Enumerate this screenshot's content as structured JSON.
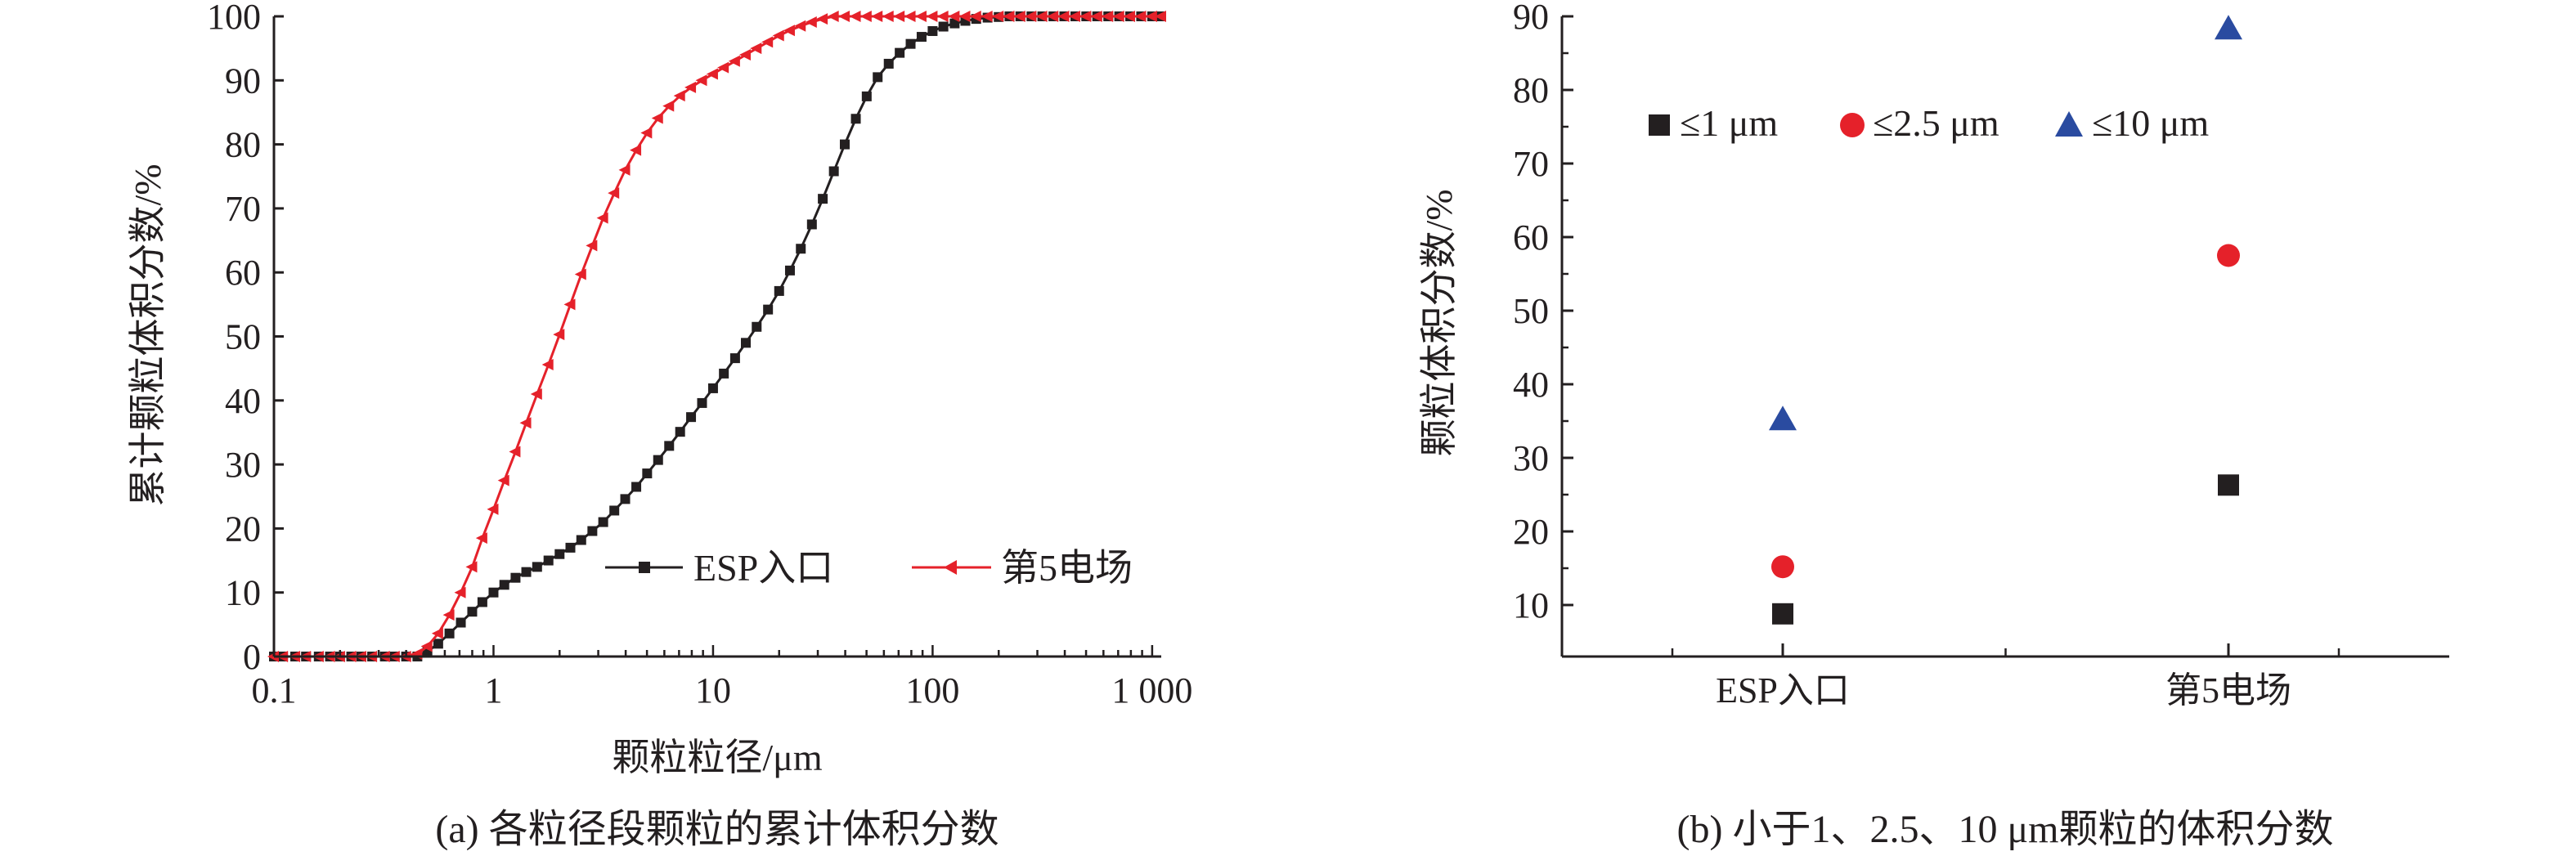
{
  "chart_data": [
    {
      "type": "line",
      "caption": "(a) 各粒径段颗粒的累计体积分数",
      "xlabel": "颗粒粒径/μm",
      "ylabel": "累计颗粒体积分数/%",
      "xscale": "log",
      "xlim": [
        0.1,
        1100
      ],
      "ylim": [
        0,
        100
      ],
      "xticks": [
        0.1,
        1,
        10,
        100,
        1000
      ],
      "xtick_labels": [
        "0.1",
        "1",
        "10",
        "100",
        "1 000"
      ],
      "yticks": [
        0,
        10,
        20,
        30,
        40,
        50,
        60,
        70,
        80,
        90,
        100
      ],
      "legend_position": "lower-right",
      "series": [
        {
          "name": "ESP入口",
          "color": "#231f20",
          "marker": "square",
          "points": [
            [
              0.1,
              0
            ],
            [
              0.11,
              0
            ],
            [
              0.125,
              0
            ],
            [
              0.14,
              0
            ],
            [
              0.16,
              0
            ],
            [
              0.18,
              0
            ],
            [
              0.2,
              0
            ],
            [
              0.225,
              0
            ],
            [
              0.25,
              0
            ],
            [
              0.28,
              0
            ],
            [
              0.32,
              0
            ],
            [
              0.355,
              0
            ],
            [
              0.4,
              0
            ],
            [
              0.45,
              0
            ],
            [
              0.5,
              0.8
            ],
            [
              0.56,
              2
            ],
            [
              0.63,
              3.6
            ],
            [
              0.71,
              5.3
            ],
            [
              0.8,
              7
            ],
            [
              0.89,
              8.5
            ],
            [
              1.0,
              10
            ],
            [
              1.12,
              11.2
            ],
            [
              1.26,
              12.3
            ],
            [
              1.41,
              13.2
            ],
            [
              1.58,
              14
            ],
            [
              1.78,
              15
            ],
            [
              2.0,
              16
            ],
            [
              2.24,
              17
            ],
            [
              2.51,
              18.2
            ],
            [
              2.82,
              19.6
            ],
            [
              3.16,
              21
            ],
            [
              3.55,
              22.8
            ],
            [
              3.98,
              24.6
            ],
            [
              4.47,
              26.5
            ],
            [
              5.01,
              28.6
            ],
            [
              5.62,
              30.7
            ],
            [
              6.31,
              32.9
            ],
            [
              7.08,
              35.1
            ],
            [
              7.94,
              37.4
            ],
            [
              8.91,
              39.6
            ],
            [
              10.0,
              41.9
            ],
            [
              11.2,
              44.2
            ],
            [
              12.6,
              46.6
            ],
            [
              14.1,
              49
            ],
            [
              15.8,
              51.5
            ],
            [
              17.8,
              54.2
            ],
            [
              20.0,
              57.1
            ],
            [
              22.4,
              60.3
            ],
            [
              25.1,
              63.7
            ],
            [
              28.2,
              67.5
            ],
            [
              31.6,
              71.5
            ],
            [
              35.5,
              75.8
            ],
            [
              39.8,
              80
            ],
            [
              44.7,
              84
            ],
            [
              50.1,
              87.5
            ],
            [
              56.2,
              90.5
            ],
            [
              63.1,
              92.6
            ],
            [
              70.8,
              94.3
            ],
            [
              79.4,
              95.7
            ],
            [
              89.1,
              96.8
            ],
            [
              100,
              97.7
            ],
            [
              112,
              98.4
            ],
            [
              126,
              98.9
            ],
            [
              141,
              99.3
            ],
            [
              158,
              99.6
            ],
            [
              178,
              99.8
            ],
            [
              200,
              99.9
            ],
            [
              224,
              100
            ],
            [
              251,
              100
            ],
            [
              282,
              100
            ],
            [
              316,
              100
            ],
            [
              355,
              100
            ],
            [
              398,
              100
            ],
            [
              447,
              100
            ],
            [
              501,
              100
            ],
            [
              562,
              100
            ],
            [
              631,
              100
            ],
            [
              708,
              100
            ],
            [
              794,
              100
            ],
            [
              891,
              100
            ],
            [
              1000,
              100
            ],
            [
              1100,
              100
            ]
          ]
        },
        {
          "name": "第5电场",
          "color": "#e5212a",
          "marker": "triangle-left",
          "points": [
            [
              0.1,
              0
            ],
            [
              0.11,
              0
            ],
            [
              0.125,
              0
            ],
            [
              0.14,
              0
            ],
            [
              0.16,
              0
            ],
            [
              0.18,
              0
            ],
            [
              0.2,
              0
            ],
            [
              0.225,
              0
            ],
            [
              0.25,
              0
            ],
            [
              0.28,
              0
            ],
            [
              0.32,
              0
            ],
            [
              0.355,
              0
            ],
            [
              0.4,
              0
            ],
            [
              0.45,
              0.4
            ],
            [
              0.5,
              1.6
            ],
            [
              0.56,
              3.6
            ],
            [
              0.63,
              6.5
            ],
            [
              0.71,
              10
            ],
            [
              0.8,
              14
            ],
            [
              0.89,
              18.5
            ],
            [
              1.0,
              23
            ],
            [
              1.12,
              27.5
            ],
            [
              1.26,
              32
            ],
            [
              1.41,
              36.5
            ],
            [
              1.58,
              41
            ],
            [
              1.78,
              45.6
            ],
            [
              2.0,
              50.3
            ],
            [
              2.24,
              55
            ],
            [
              2.51,
              59.7
            ],
            [
              2.82,
              64.2
            ],
            [
              3.16,
              68.5
            ],
            [
              3.55,
              72.4
            ],
            [
              3.98,
              76
            ],
            [
              4.47,
              79.1
            ],
            [
              5.01,
              81.8
            ],
            [
              5.62,
              84.1
            ],
            [
              6.31,
              86
            ],
            [
              7.08,
              87.6
            ],
            [
              7.94,
              88.9
            ],
            [
              8.91,
              90
            ],
            [
              10.0,
              91
            ],
            [
              11.2,
              92
            ],
            [
              12.6,
              93
            ],
            [
              14.1,
              94
            ],
            [
              15.8,
              95
            ],
            [
              17.8,
              96
            ],
            [
              20.0,
              97
            ],
            [
              22.4,
              97.8
            ],
            [
              25.1,
              98.5
            ],
            [
              28.2,
              99.1
            ],
            [
              31.6,
              99.6
            ],
            [
              35.5,
              100
            ],
            [
              39.8,
              100
            ],
            [
              44.7,
              100
            ],
            [
              50.1,
              100
            ],
            [
              56.2,
              100
            ],
            [
              63.1,
              100
            ],
            [
              70.8,
              100
            ],
            [
              79.4,
              100
            ],
            [
              89.1,
              100
            ],
            [
              100,
              100
            ],
            [
              112,
              100
            ],
            [
              126,
              100
            ],
            [
              141,
              100
            ],
            [
              158,
              100
            ],
            [
              178,
              100
            ],
            [
              200,
              100
            ],
            [
              224,
              100
            ],
            [
              251,
              100
            ],
            [
              282,
              100
            ],
            [
              316,
              100
            ],
            [
              355,
              100
            ],
            [
              398,
              100
            ],
            [
              447,
              100
            ],
            [
              501,
              100
            ],
            [
              562,
              100
            ],
            [
              631,
              100
            ],
            [
              708,
              100
            ],
            [
              794,
              100
            ],
            [
              891,
              100
            ],
            [
              1000,
              100
            ],
            [
              1100,
              100
            ]
          ]
        }
      ]
    },
    {
      "type": "scatter",
      "caption": "(b) 小于1、2.5、10 μm颗粒的体积分数",
      "xlabel": "",
      "ylabel": "颗粒体积分数/%",
      "ylim": [
        3,
        90
      ],
      "yticks": [
        10,
        20,
        30,
        40,
        50,
        60,
        70,
        80,
        90
      ],
      "categories": [
        "ESP入口",
        "第5电场"
      ],
      "legend_position": "top-left",
      "series": [
        {
          "name": "≤1 μm",
          "color": "#231f20",
          "marker": "square",
          "values": [
            8.8,
            26.3
          ]
        },
        {
          "name": "≤2.5 μm",
          "color": "#e5212a",
          "marker": "circle",
          "values": [
            15.2,
            57.5
          ]
        },
        {
          "name": "≤10 μm",
          "color": "#2a4ba0",
          "marker": "triangle-up",
          "values": [
            35.2,
            88.3
          ]
        }
      ]
    }
  ]
}
